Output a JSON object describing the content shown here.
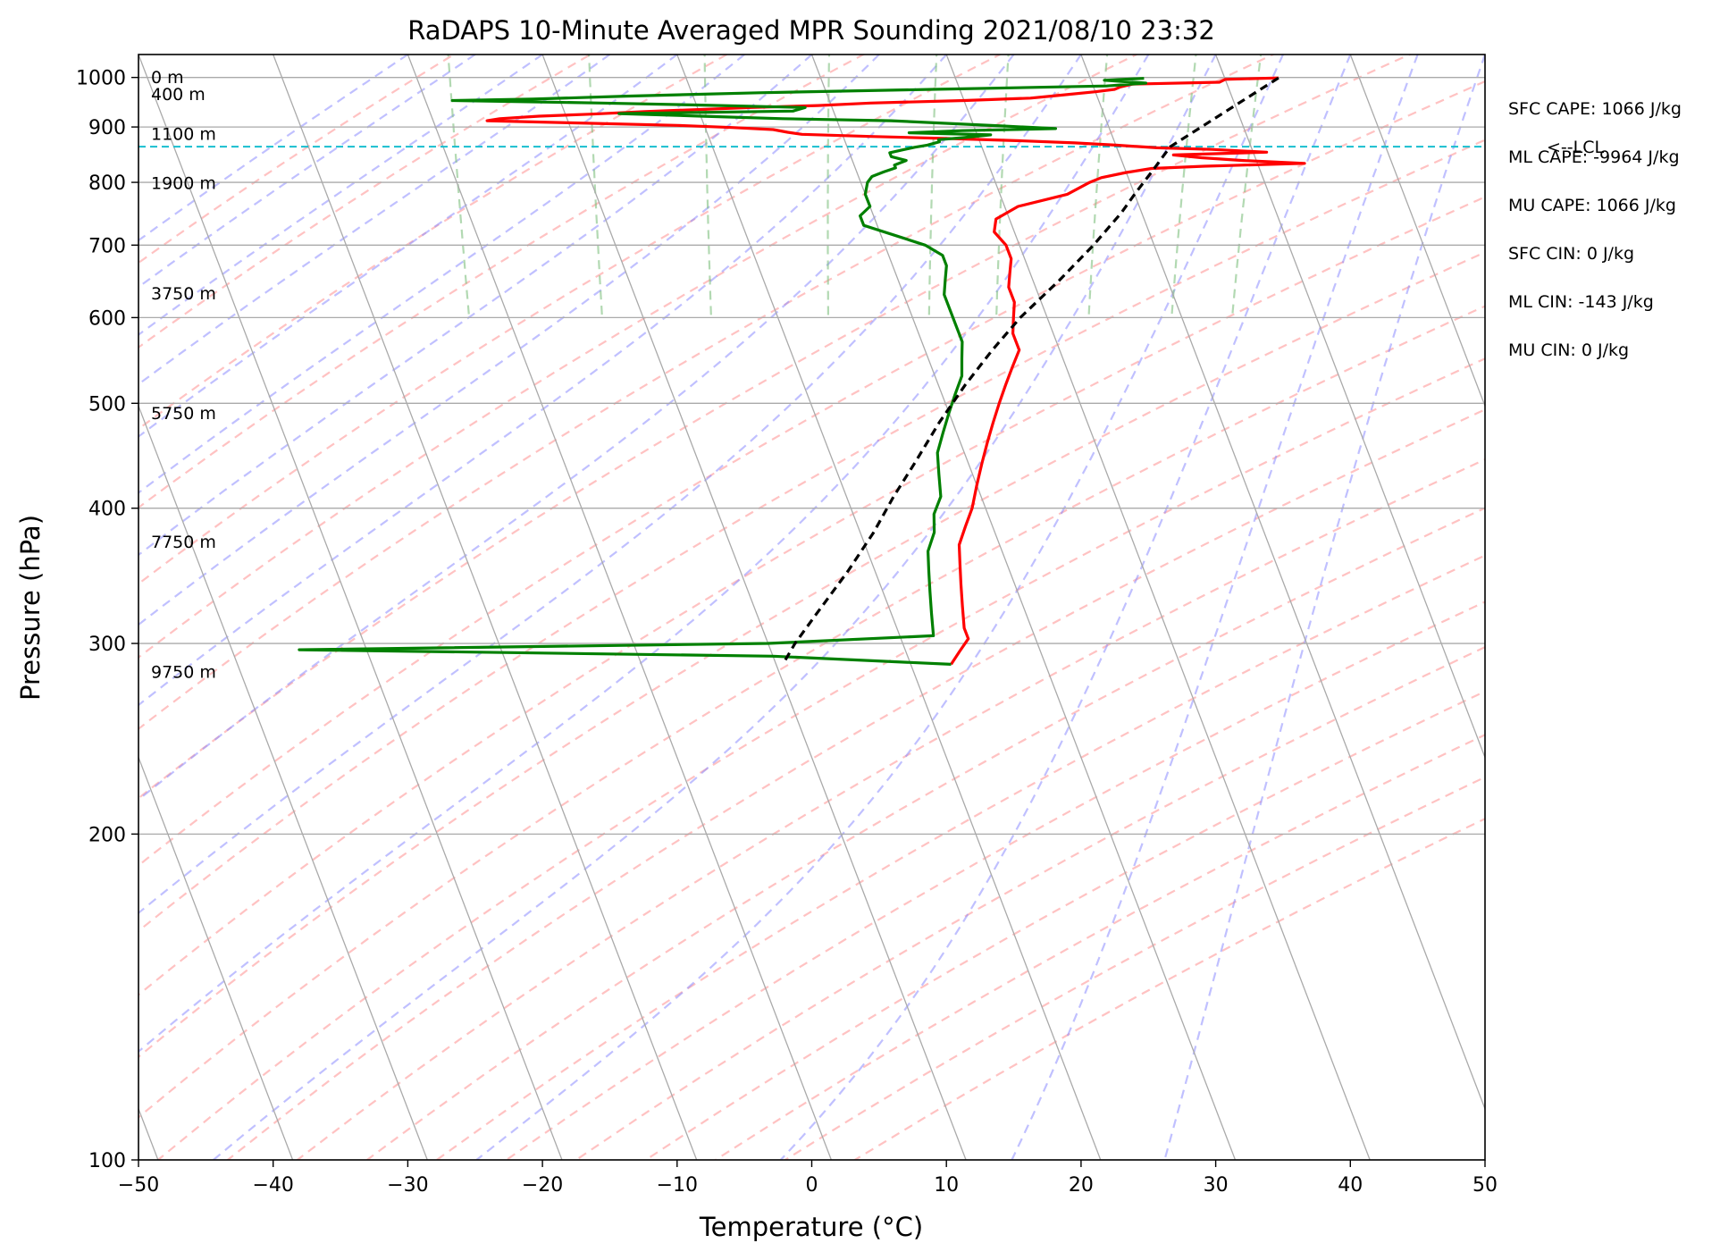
{
  "chart_data": {
    "type": "line",
    "title": "RaDAPS 10-Minute Averaged MPR Sounding 2021/08/10 23:32",
    "xlabel": "Temperature (°C)",
    "ylabel": "Pressure (hPa)",
    "xlim": [
      -50,
      50
    ],
    "ylim": [
      1050,
      100
    ],
    "yscale": "log",
    "grid": true,
    "xticks": [
      -50,
      -40,
      -30,
      -20,
      -10,
      0,
      10,
      20,
      30,
      40,
      50
    ],
    "xtick_labels": [
      "−50",
      "−40",
      "−30",
      "−20",
      "−10",
      "0",
      "10",
      "20",
      "30",
      "40",
      "50"
    ],
    "yticks": [
      100,
      200,
      300,
      400,
      500,
      600,
      700,
      800,
      900,
      1000
    ],
    "ytick_labels": [
      "100",
      "200",
      "300",
      "400",
      "500",
      "600",
      "700",
      "800",
      "900",
      "1000"
    ],
    "annotations": [
      {
        "text": "SFC CAPE: 1066 J/kg"
      },
      {
        "text": "ML CAPE: -9964 J/kg"
      },
      {
        "text": "MU CAPE: 1066 J/kg"
      },
      {
        "text": "SFC CIN: 0 J/kg"
      },
      {
        "text": "ML CIN: -143 J/kg"
      },
      {
        "text": "MU CIN: 0 J/kg"
      }
    ],
    "height_labels": [
      {
        "text": "9750 m",
        "pressure": 282
      },
      {
        "text": "7750 m",
        "pressure": 372
      },
      {
        "text": "5750 m",
        "pressure": 489
      },
      {
        "text": "3750 m",
        "pressure": 631
      },
      {
        "text": "1900 m",
        "pressure": 798
      },
      {
        "text": "1100 m",
        "pressure": 886
      },
      {
        "text": "400 m",
        "pressure": 964
      },
      {
        "text": "0 m",
        "pressure": 999
      }
    ],
    "lcl": {
      "label": "<--LCL",
      "pressure": 863,
      "color": "#17becf"
    },
    "series": [
      {
        "key": "temperature",
        "color": "#ff0000",
        "points": [
          [
            34,
            999
          ],
          [
            30,
            996
          ],
          [
            29.5,
            990
          ],
          [
            23,
            986
          ],
          [
            22,
            980
          ],
          [
            21.5,
            975
          ],
          [
            20,
            970
          ],
          [
            17,
            962
          ],
          [
            15,
            957
          ],
          [
            10,
            952
          ],
          [
            3,
            947
          ],
          [
            -1,
            942
          ],
          [
            -6,
            938
          ],
          [
            -10,
            934
          ],
          [
            -14,
            930
          ],
          [
            -18,
            925
          ],
          [
            -22,
            921
          ],
          [
            -25,
            916
          ],
          [
            -26,
            912
          ],
          [
            -20,
            908
          ],
          [
            -12,
            903
          ],
          [
            -8,
            899
          ],
          [
            -5,
            895
          ],
          [
            -4,
            890
          ],
          [
            -3,
            886
          ],
          [
            2,
            882
          ],
          [
            8,
            878
          ],
          [
            13,
            874
          ],
          [
            17,
            870
          ],
          [
            20,
            866
          ],
          [
            23,
            861
          ],
          [
            27,
            858
          ],
          [
            31,
            853
          ],
          [
            24,
            848
          ],
          [
            26,
            843
          ],
          [
            29,
            838
          ],
          [
            33.5,
            833
          ],
          [
            26,
            828
          ],
          [
            22,
            824
          ],
          [
            20,
            817
          ],
          [
            18,
            808
          ],
          [
            17,
            800
          ],
          [
            15,
            780
          ],
          [
            11,
            760
          ],
          [
            9,
            740
          ],
          [
            8.5,
            720
          ],
          [
            9,
            700
          ],
          [
            9,
            680
          ],
          [
            8.5,
            660
          ],
          [
            8,
            640
          ],
          [
            8,
            620
          ],
          [
            7.5,
            600
          ],
          [
            7,
            580
          ],
          [
            7,
            560
          ],
          [
            6,
            540
          ],
          [
            5,
            520
          ],
          [
            4,
            500
          ],
          [
            3,
            480
          ],
          [
            2,
            460
          ],
          [
            1,
            440
          ],
          [
            0,
            420
          ],
          [
            -1,
            400
          ],
          [
            -2,
            385
          ],
          [
            -3,
            370
          ],
          [
            -3.5,
            355
          ],
          [
            -4,
            340
          ],
          [
            -4.5,
            325
          ],
          [
            -5,
            310
          ],
          [
            -5,
            303
          ],
          [
            -6,
            295
          ],
          [
            -7,
            287
          ]
        ],
        "name": ""
      },
      {
        "key": "dewpoint",
        "color": "#008000",
        "points": [
          [
            24,
            998
          ],
          [
            21,
            994
          ],
          [
            24,
            988
          ],
          [
            21,
            982
          ],
          [
            8,
            975
          ],
          [
            -5,
            968
          ],
          [
            -15,
            961
          ],
          [
            -22,
            955
          ],
          [
            -28,
            952
          ],
          [
            -17,
            947
          ],
          [
            -10,
            943
          ],
          [
            -2,
            938
          ],
          [
            -3,
            931
          ],
          [
            -16,
            926
          ],
          [
            -10,
            921
          ],
          [
            -4,
            916
          ],
          [
            4,
            912
          ],
          [
            8,
            907
          ],
          [
            12,
            902
          ],
          [
            16,
            897
          ],
          [
            9,
            893
          ],
          [
            5,
            889
          ],
          [
            11,
            885
          ],
          [
            9,
            880
          ],
          [
            7,
            876
          ],
          [
            7,
            872
          ],
          [
            6,
            866
          ],
          [
            5,
            862
          ],
          [
            4,
            857
          ],
          [
            3,
            852
          ],
          [
            3,
            845
          ],
          [
            4,
            838
          ],
          [
            3,
            830
          ],
          [
            3,
            825
          ],
          [
            2,
            818
          ],
          [
            1,
            810
          ],
          [
            0.5,
            800
          ],
          [
            0,
            780
          ],
          [
            0,
            760
          ],
          [
            -1,
            745
          ],
          [
            -1,
            730
          ],
          [
            1,
            715
          ],
          [
            3,
            700
          ],
          [
            4,
            685
          ],
          [
            4,
            670
          ],
          [
            3.5,
            650
          ],
          [
            3,
            630
          ],
          [
            3,
            610
          ],
          [
            3,
            590
          ],
          [
            3,
            570
          ],
          [
            2.5,
            550
          ],
          [
            2,
            530
          ],
          [
            1,
            510
          ],
          [
            0,
            490
          ],
          [
            -1,
            470
          ],
          [
            -2,
            450
          ],
          [
            -2.5,
            430
          ],
          [
            -3,
            410
          ],
          [
            -4,
            395
          ],
          [
            -4.5,
            380
          ],
          [
            -5.5,
            365
          ],
          [
            -6,
            350
          ],
          [
            -6.5,
            335
          ],
          [
            -7,
            320
          ],
          [
            -7.5,
            305
          ],
          [
            -20,
            300
          ],
          [
            -55,
            296
          ],
          [
            -20,
            292
          ],
          [
            -7,
            287
          ]
        ],
        "name": ""
      },
      {
        "key": "parcel",
        "color": "#000000",
        "dash": "9,6",
        "points": [
          [
            34,
            999
          ],
          [
            24,
            863
          ],
          [
            22,
            820
          ],
          [
            20,
            780
          ],
          [
            18.5,
            750
          ],
          [
            15.5,
            700
          ],
          [
            12,
            650
          ],
          [
            8,
            600
          ],
          [
            5,
            560
          ],
          [
            2,
            520
          ],
          [
            -1,
            480
          ],
          [
            -4,
            440
          ],
          [
            -6.5,
            410
          ],
          [
            -9,
            380
          ],
          [
            -12,
            350
          ],
          [
            -15.5,
            320
          ],
          [
            -18,
            300
          ],
          [
            -19.5,
            287
          ]
        ],
        "name": ""
      }
    ]
  }
}
